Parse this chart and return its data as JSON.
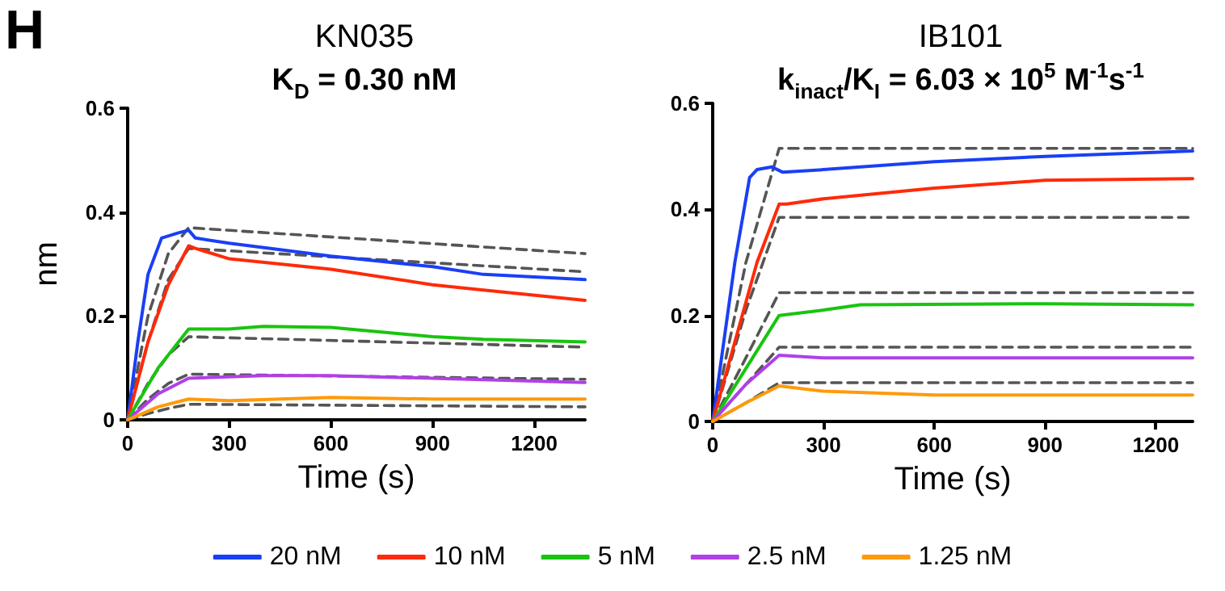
{
  "chart_data": [
    {
      "type": "line",
      "title": "KN035",
      "subtitle": "K$_{D}$ = 0.30 nM",
      "annotations": [
        "H"
      ],
      "xlabel": "Time (s)",
      "ylabel": "nm",
      "xlim": [
        0,
        1350
      ],
      "xticks": [
        0,
        300,
        600,
        900,
        1200
      ],
      "ylim": [
        0,
        0.6
      ],
      "yticks": [
        0,
        0.2,
        0.4,
        0.6
      ],
      "grid": false,
      "legend": "bottom",
      "marker": "none",
      "line_style": "solid",
      "series": [
        {
          "name": "20 nM",
          "color": "#1a3ff5",
          "x": [
            0,
            30,
            60,
            100,
            150,
            180,
            200,
            300,
            600,
            900,
            1050,
            1350
          ],
          "values": [
            0,
            0.15,
            0.28,
            0.35,
            0.36,
            0.365,
            0.35,
            0.34,
            0.315,
            0.295,
            0.28,
            0.27
          ]
        },
        {
          "name": "10 nM",
          "color": "#ff2a0a",
          "x": [
            0,
            60,
            120,
            180,
            200,
            300,
            600,
            900,
            1050,
            1350
          ],
          "values": [
            0,
            0.15,
            0.26,
            0.335,
            0.33,
            0.31,
            0.29,
            0.26,
            0.25,
            0.23
          ]
        },
        {
          "name": "5 nM",
          "color": "#19c40f",
          "x": [
            0,
            90,
            180,
            300,
            400,
            600,
            900,
            1050,
            1350
          ],
          "values": [
            0,
            0.1,
            0.175,
            0.175,
            0.18,
            0.178,
            0.16,
            0.155,
            0.15
          ]
        },
        {
          "name": "2.5 nM",
          "color": "#b040e8",
          "x": [
            0,
            90,
            180,
            400,
            600,
            900,
            1350
          ],
          "values": [
            0,
            0.05,
            0.08,
            0.085,
            0.085,
            0.08,
            0.072
          ]
        },
        {
          "name": "1.25 nM",
          "color": "#ff9a0a",
          "x": [
            0,
            90,
            180,
            300,
            600,
            900,
            1350
          ],
          "values": [
            0,
            0.025,
            0.04,
            0.037,
            0.043,
            0.04,
            0.04
          ]
        },
        {
          "color": "#555555",
          "line_style": "dashed",
          "x": [
            0,
            60,
            120,
            180,
            1350
          ],
          "values": [
            0,
            0.2,
            0.32,
            0.37,
            0.32
          ]
        },
        {
          "color": "#555555",
          "line_style": "dashed",
          "x": [
            0,
            60,
            120,
            180,
            1350
          ],
          "values": [
            0,
            0.15,
            0.27,
            0.33,
            0.285
          ]
        },
        {
          "color": "#555555",
          "line_style": "dashed",
          "x": [
            0,
            60,
            120,
            180,
            1350
          ],
          "values": [
            0,
            0.07,
            0.125,
            0.16,
            0.14
          ]
        },
        {
          "color": "#555555",
          "line_style": "dashed",
          "x": [
            0,
            60,
            120,
            180,
            1350
          ],
          "values": [
            0,
            0.04,
            0.07,
            0.088,
            0.078
          ]
        },
        {
          "color": "#555555",
          "line_style": "dashed",
          "x": [
            0,
            60,
            120,
            180,
            1350
          ],
          "values": [
            0,
            0.012,
            0.022,
            0.03,
            0.025
          ]
        }
      ]
    },
    {
      "type": "line",
      "title": "IB101",
      "subtitle": "k$_{inact}$/K$_{I}$ = 6.03 × 10$^{5}$ M$^{-1}$s$^{-1}$",
      "xlabel": "Time (s)",
      "xlim": [
        0,
        1300
      ],
      "xticks": [
        0,
        300,
        600,
        900,
        1200
      ],
      "ylim": [
        0,
        0.6
      ],
      "yticks": [
        0,
        0.2,
        0.4,
        0.6
      ],
      "grid": false,
      "marker": "none",
      "line_style": "solid",
      "series": [
        {
          "color": "#1a3ff5",
          "x": [
            0,
            60,
            100,
            120,
            160,
            190,
            300,
            600,
            900,
            1300
          ],
          "values": [
            0,
            0.3,
            0.46,
            0.475,
            0.48,
            0.47,
            0.475,
            0.49,
            0.5,
            0.51
          ]
        },
        {
          "color": "#ff2a0a",
          "x": [
            0,
            60,
            120,
            180,
            200,
            300,
            600,
            900,
            1300
          ],
          "values": [
            0,
            0.15,
            0.3,
            0.41,
            0.41,
            0.42,
            0.44,
            0.455,
            0.458
          ]
        },
        {
          "color": "#19c40f",
          "x": [
            0,
            90,
            180,
            300,
            400,
            900,
            1300
          ],
          "values": [
            0,
            0.1,
            0.2,
            0.21,
            0.22,
            0.222,
            0.22
          ]
        },
        {
          "color": "#b040e8",
          "x": [
            0,
            90,
            180,
            300,
            900,
            1300
          ],
          "values": [
            0,
            0.07,
            0.125,
            0.12,
            0.12,
            0.12
          ]
        },
        {
          "color": "#ff9a0a",
          "x": [
            0,
            90,
            180,
            300,
            600,
            900,
            1300
          ],
          "values": [
            0,
            0.035,
            0.067,
            0.057,
            0.05,
            0.05,
            0.05
          ]
        },
        {
          "color": "#555555",
          "line_style": "dashed",
          "x": [
            0,
            90,
            180,
            1300
          ],
          "values": [
            0,
            0.3,
            0.515,
            0.515
          ]
        },
        {
          "color": "#555555",
          "line_style": "dashed",
          "x": [
            0,
            90,
            180,
            1300
          ],
          "values": [
            0,
            0.21,
            0.385,
            0.385
          ]
        },
        {
          "color": "#555555",
          "line_style": "dashed",
          "x": [
            0,
            90,
            180,
            1300
          ],
          "values": [
            0,
            0.12,
            0.243,
            0.243
          ]
        },
        {
          "color": "#555555",
          "line_style": "dashed",
          "x": [
            0,
            90,
            180,
            1300
          ],
          "values": [
            0,
            0.07,
            0.14,
            0.14
          ]
        },
        {
          "color": "#555555",
          "line_style": "dashed",
          "x": [
            0,
            90,
            180,
            1300
          ],
          "values": [
            0,
            0.035,
            0.073,
            0.073
          ]
        }
      ]
    }
  ]
}
